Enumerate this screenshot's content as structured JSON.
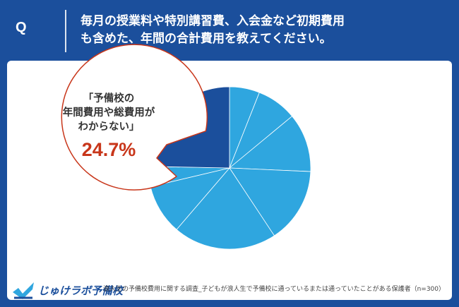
{
  "header": {
    "q_label": "Q",
    "question_line1": "毎月の授業料や特別講習費、入会金など初期費用",
    "question_line2": "も含めた、年間の合計費用を教えてください。"
  },
  "callout": {
    "line1": "「予備校の",
    "line2": "年間費用や総費用が",
    "line3": "わからない」",
    "value": "24.7%"
  },
  "brand": {
    "name": "じゅけラボ予備校"
  },
  "footer": {
    "source": "浪人生の予備校費用に関する調査_子どもが浪人生で予備校に通っているまたは通っていたことがある保護者（n=300）"
  },
  "colors": {
    "header_bg": "#1b4f9c",
    "highlight_slice": "#1b4f9c",
    "other_slices": "#2fa6df",
    "value_text": "#c8361a"
  },
  "chart_data": {
    "type": "pie",
    "title": "",
    "highlight_index": 7,
    "slices": [
      {
        "label": "",
        "value": 6.0
      },
      {
        "label": "",
        "value": 8.0
      },
      {
        "label": "",
        "value": 11.7
      },
      {
        "label": "",
        "value": 15.0
      },
      {
        "label": "",
        "value": 20.6
      },
      {
        "label": "",
        "value": 10.0
      },
      {
        "label": "",
        "value": 4.0
      },
      {
        "label": "わからない",
        "value": 24.7
      }
    ]
  }
}
